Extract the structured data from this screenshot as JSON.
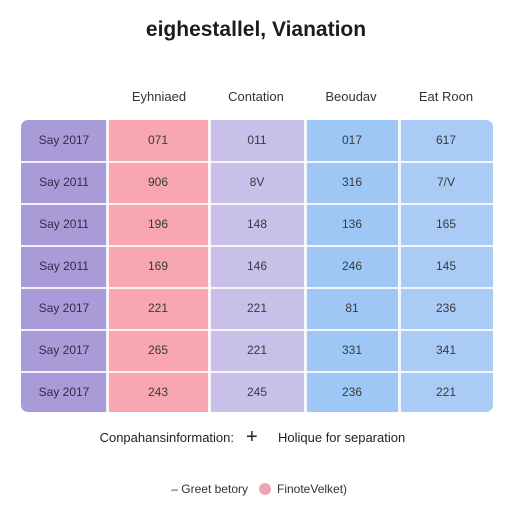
{
  "chart_data": {
    "type": "table",
    "title": "eighestallel, Vianation",
    "columns": [
      "",
      "Eyhniaed",
      "Contation",
      "Beoudav",
      "Eat Roon"
    ],
    "rows": [
      [
        "Say 2017",
        "071",
        "011",
        "017",
        "617"
      ],
      [
        "Say 2011",
        "906",
        "8V",
        "316",
        "7/V"
      ],
      [
        "Say 2011",
        "196",
        "148",
        "136",
        "165"
      ],
      [
        "Say 2011",
        "169",
        "146",
        "246",
        "145"
      ],
      [
        "Say 2017",
        "221",
        "221",
        "81",
        "236"
      ],
      [
        "Say 2017",
        "265",
        "221",
        "331",
        "341"
      ],
      [
        "Say 2017",
        "243",
        "245",
        "236",
        "221"
      ]
    ],
    "colors": {
      "label_column": "#a99bd8",
      "column_1": "#f7a6b2",
      "column_2": "#c9c0ea",
      "column_3": "#9ec7f5",
      "column_4": "#a9cbf6"
    },
    "annotation": {
      "left": "Conpahansinformation:",
      "symbol": "+",
      "right": "Holique for separation"
    },
    "legend": {
      "item_1": "– Greet betory",
      "item_2": "FinoteVelket)",
      "item_2_color": "#f2a3b3",
      "placement": "bottom"
    }
  }
}
